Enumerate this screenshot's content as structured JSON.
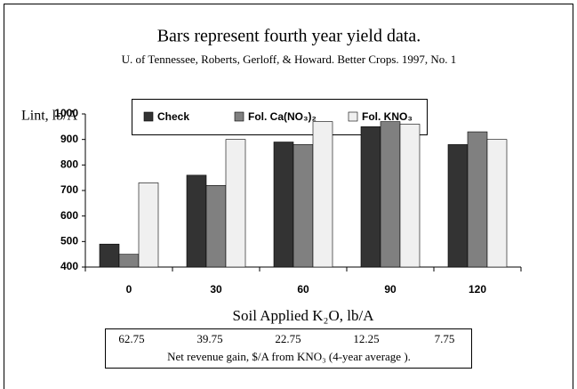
{
  "chart_data": {
    "type": "bar",
    "title": "Bars represent fourth year yield data.",
    "subtitle": "U. of Tennessee, Roberts, Gerloff, & Howard. Better Crops. 1997, No. 1",
    "y_label": "Lint, lb/A",
    "x_label": "Soil Applied K₂O, lb/A",
    "categories": [
      "0",
      "30",
      "60",
      "90",
      "120"
    ],
    "series": [
      {
        "name": "Check",
        "color": "#333333",
        "values": [
          490,
          760,
          890,
          950,
          880
        ]
      },
      {
        "name": "Fol. Ca(NO₃)₂",
        "color": "#808080",
        "values": [
          450,
          720,
          880,
          970,
          930
        ]
      },
      {
        "name": "Fol. KNO₃",
        "color": "#f0f0f0",
        "values": [
          730,
          900,
          970,
          960,
          900
        ]
      }
    ],
    "ylim": [
      400,
      1000
    ],
    "yticks": [
      400,
      500,
      600,
      700,
      800,
      900,
      1000
    ],
    "grid": false,
    "revenue_gains": [
      62.75,
      39.75,
      22.75,
      12.25,
      7.75
    ],
    "revenue_caption": "Net revenue gain, $/A from KNO₃ (4-year average )."
  }
}
